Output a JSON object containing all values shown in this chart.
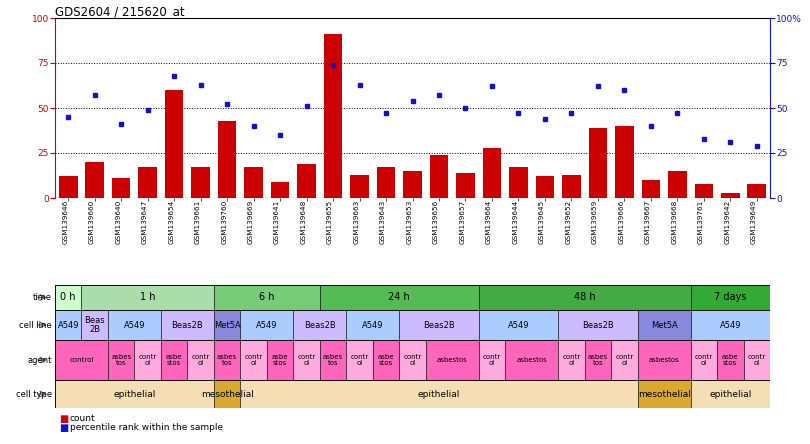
{
  "title": "GDS2604 / 215620_at",
  "samples": [
    "GSM139646",
    "GSM139660",
    "GSM139640",
    "GSM139647",
    "GSM139654",
    "GSM139661",
    "GSM139760",
    "GSM139669",
    "GSM139641",
    "GSM139648",
    "GSM139655",
    "GSM139663",
    "GSM139643",
    "GSM139653",
    "GSM139656",
    "GSM139657",
    "GSM139664",
    "GSM139644",
    "GSM139645",
    "GSM139652",
    "GSM139659",
    "GSM139666",
    "GSM139667",
    "GSM139668",
    "GSM139761",
    "GSM139642",
    "GSM139649"
  ],
  "counts": [
    12,
    20,
    11,
    17,
    60,
    17,
    43,
    17,
    9,
    19,
    91,
    13,
    17,
    15,
    24,
    14,
    28,
    17,
    12,
    13,
    39,
    40,
    10,
    15,
    8,
    3,
    8
  ],
  "percentiles": [
    45,
    57,
    41,
    49,
    68,
    63,
    52,
    40,
    35,
    51,
    74,
    63,
    47,
    54,
    57,
    50,
    62,
    47,
    44,
    47,
    62,
    60,
    40,
    47,
    33,
    31,
    29
  ],
  "bar_color": "#cc0000",
  "dot_color": "#1111cc",
  "ylim": [
    0,
    100
  ],
  "dotted_lines": [
    25,
    50,
    75
  ],
  "time_row": {
    "label": "time",
    "segments": [
      {
        "text": "0 h",
        "start": 0,
        "end": 1,
        "color": "#ccffcc"
      },
      {
        "text": "1 h",
        "start": 1,
        "end": 6,
        "color": "#aaddaa"
      },
      {
        "text": "6 h",
        "start": 6,
        "end": 10,
        "color": "#77cc77"
      },
      {
        "text": "24 h",
        "start": 10,
        "end": 16,
        "color": "#55bb55"
      },
      {
        "text": "48 h",
        "start": 16,
        "end": 24,
        "color": "#44aa44"
      },
      {
        "text": "7 days",
        "start": 24,
        "end": 27,
        "color": "#33aa33"
      }
    ]
  },
  "cell_line_row": {
    "label": "cell line",
    "segments": [
      {
        "text": "A549",
        "start": 0,
        "end": 1,
        "color": "#aaccff"
      },
      {
        "text": "Beas\n2B",
        "start": 1,
        "end": 2,
        "color": "#ccbbff"
      },
      {
        "text": "A549",
        "start": 2,
        "end": 4,
        "color": "#aaccff"
      },
      {
        "text": "Beas2B",
        "start": 4,
        "end": 6,
        "color": "#ccbbff"
      },
      {
        "text": "Met5A",
        "start": 6,
        "end": 7,
        "color": "#8888dd"
      },
      {
        "text": "A549",
        "start": 7,
        "end": 9,
        "color": "#aaccff"
      },
      {
        "text": "Beas2B",
        "start": 9,
        "end": 11,
        "color": "#ccbbff"
      },
      {
        "text": "A549",
        "start": 11,
        "end": 13,
        "color": "#aaccff"
      },
      {
        "text": "Beas2B",
        "start": 13,
        "end": 16,
        "color": "#ccbbff"
      },
      {
        "text": "A549",
        "start": 16,
        "end": 19,
        "color": "#aaccff"
      },
      {
        "text": "Beas2B",
        "start": 19,
        "end": 22,
        "color": "#ccbbff"
      },
      {
        "text": "Met5A",
        "start": 22,
        "end": 24,
        "color": "#8888dd"
      },
      {
        "text": "A549",
        "start": 24,
        "end": 27,
        "color": "#aaccff"
      }
    ]
  },
  "agent_row": {
    "label": "agent",
    "segments": [
      {
        "text": "control",
        "start": 0,
        "end": 2,
        "color": "#ff66bb"
      },
      {
        "text": "asbes\ntos",
        "start": 2,
        "end": 3,
        "color": "#ff66bb"
      },
      {
        "text": "contr\nol",
        "start": 3,
        "end": 4,
        "color": "#ffaadd"
      },
      {
        "text": "asbe\nstos",
        "start": 4,
        "end": 5,
        "color": "#ff66bb"
      },
      {
        "text": "contr\nol",
        "start": 5,
        "end": 6,
        "color": "#ffaadd"
      },
      {
        "text": "asbes\ntos",
        "start": 6,
        "end": 7,
        "color": "#ff66bb"
      },
      {
        "text": "contr\nol",
        "start": 7,
        "end": 8,
        "color": "#ffaadd"
      },
      {
        "text": "asbe\nstos",
        "start": 8,
        "end": 9,
        "color": "#ff66bb"
      },
      {
        "text": "contr\nol",
        "start": 9,
        "end": 10,
        "color": "#ffaadd"
      },
      {
        "text": "asbes\ntos",
        "start": 10,
        "end": 11,
        "color": "#ff66bb"
      },
      {
        "text": "contr\nol",
        "start": 11,
        "end": 12,
        "color": "#ffaadd"
      },
      {
        "text": "asbe\nstos",
        "start": 12,
        "end": 13,
        "color": "#ff66bb"
      },
      {
        "text": "contr\nol",
        "start": 13,
        "end": 14,
        "color": "#ffaadd"
      },
      {
        "text": "asbestos",
        "start": 14,
        "end": 16,
        "color": "#ff66bb"
      },
      {
        "text": "contr\nol",
        "start": 16,
        "end": 17,
        "color": "#ffaadd"
      },
      {
        "text": "asbestos",
        "start": 17,
        "end": 19,
        "color": "#ff66bb"
      },
      {
        "text": "contr\nol",
        "start": 19,
        "end": 20,
        "color": "#ffaadd"
      },
      {
        "text": "asbes\ntos",
        "start": 20,
        "end": 21,
        "color": "#ff66bb"
      },
      {
        "text": "contr\nol",
        "start": 21,
        "end": 22,
        "color": "#ffaadd"
      },
      {
        "text": "asbestos",
        "start": 22,
        "end": 24,
        "color": "#ff66bb"
      },
      {
        "text": "contr\nol",
        "start": 24,
        "end": 25,
        "color": "#ffaadd"
      },
      {
        "text": "asbe\nstos",
        "start": 25,
        "end": 26,
        "color": "#ff66bb"
      },
      {
        "text": "contr\nol",
        "start": 26,
        "end": 27,
        "color": "#ffaadd"
      }
    ]
  },
  "cell_type_row": {
    "label": "cell type",
    "segments": [
      {
        "text": "epithelial",
        "start": 0,
        "end": 6,
        "color": "#f5deb3"
      },
      {
        "text": "mesothelial",
        "start": 6,
        "end": 7,
        "color": "#dba830"
      },
      {
        "text": "epithelial",
        "start": 7,
        "end": 22,
        "color": "#f5deb3"
      },
      {
        "text": "mesothelial",
        "start": 22,
        "end": 24,
        "color": "#dba830"
      },
      {
        "text": "epithelial",
        "start": 24,
        "end": 27,
        "color": "#f5deb3"
      }
    ]
  }
}
